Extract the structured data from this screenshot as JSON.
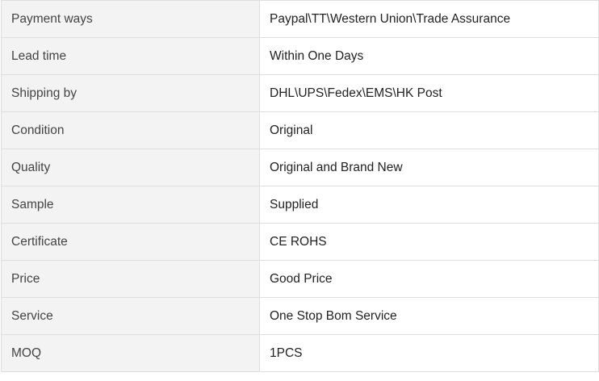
{
  "rows": [
    {
      "label": "Payment ways",
      "value": "Paypal\\TT\\Western Union\\Trade Assurance"
    },
    {
      "label": "Lead time",
      "value": "Within One Days"
    },
    {
      "label": "Shipping by",
      "value": "DHL\\UPS\\Fedex\\EMS\\HK Post"
    },
    {
      "label": "Condition",
      "value": "Original"
    },
    {
      "label": "Quality",
      "value": "Original and Brand New"
    },
    {
      "label": "Sample",
      "value": "Supplied"
    },
    {
      "label": "Certificate",
      "value": "CE ROHS"
    },
    {
      "label": "Price",
      "value": "Good Price"
    },
    {
      "label": "Service",
      "value": "One Stop Bom Service"
    },
    {
      "label": "MOQ",
      "value": "1PCS"
    }
  ]
}
